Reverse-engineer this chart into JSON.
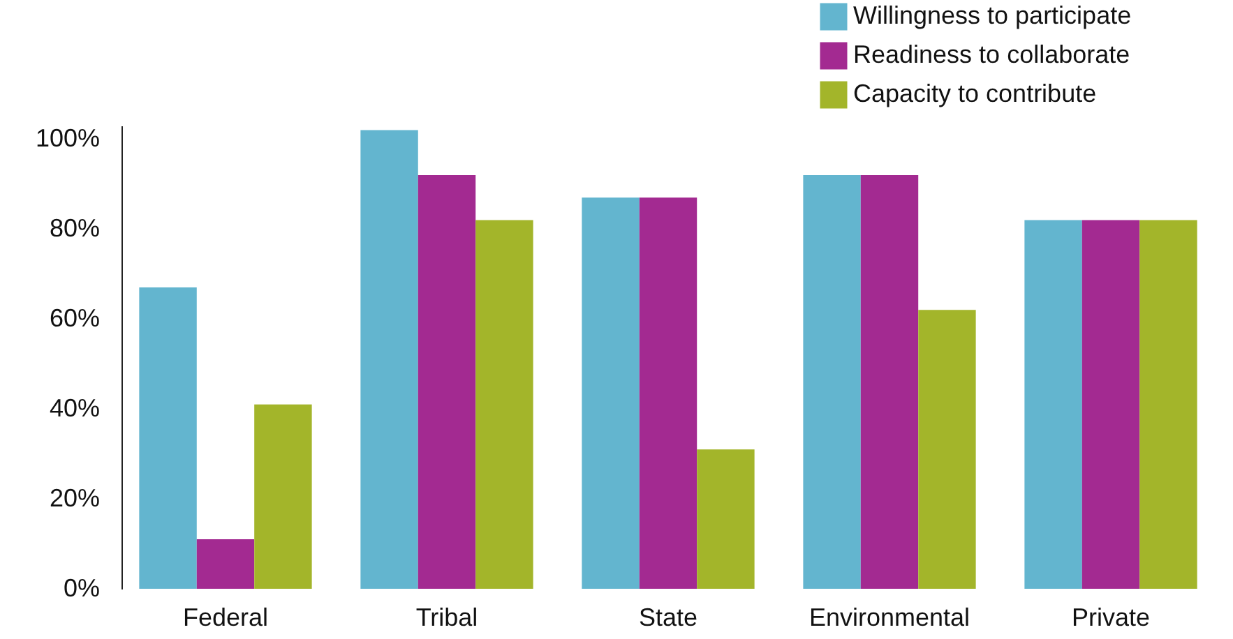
{
  "chart_data": {
    "type": "bar",
    "categories": [
      "Federal",
      "Tribal",
      "State",
      "Environmental",
      "Private"
    ],
    "series": [
      {
        "name": "Willingness to participate",
        "color": "#63b5cf",
        "values": [
          67,
          102,
          87,
          92,
          82
        ]
      },
      {
        "name": "Readiness to collaborate",
        "color": "#a32a91",
        "values": [
          11,
          92,
          87,
          92,
          82
        ]
      },
      {
        "name": "Capacity to contribute",
        "color": "#a3b52a",
        "values": [
          41,
          82,
          31,
          62,
          82
        ]
      }
    ],
    "ylim": [
      0,
      103
    ],
    "yticks": [
      {
        "value": 0,
        "label": "0%"
      },
      {
        "value": 20,
        "label": "20%"
      },
      {
        "value": 40,
        "label": "40%"
      },
      {
        "value": 60,
        "label": "60%"
      },
      {
        "value": 80,
        "label": "80%"
      },
      {
        "value": 100,
        "label": "100%"
      }
    ],
    "grid": false,
    "legend": "top right"
  }
}
